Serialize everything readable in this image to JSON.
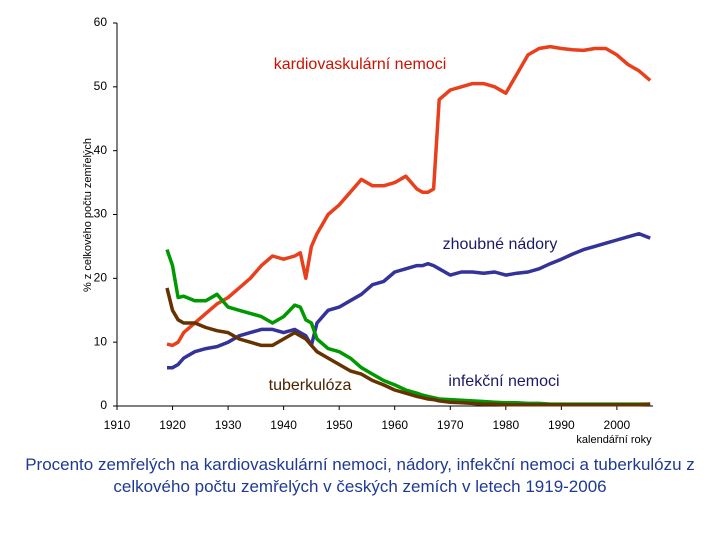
{
  "chart_data": {
    "type": "line",
    "title": "Procento zemřelých na kardiovaskulární nemoci, nádory, infekční nemoci a tuberkulózu z celkového počtu zemřelých v českých zemích v letech 1919-2006",
    "x_label": "kalendářní roky",
    "y_label": "% z celkového počtu zemřelých",
    "x": [
      1919,
      1920,
      1921,
      1922,
      1924,
      1926,
      1928,
      1930,
      1932,
      1934,
      1936,
      1938,
      1940,
      1942,
      1943,
      1944,
      1945,
      1946,
      1948,
      1950,
      1952,
      1954,
      1956,
      1958,
      1960,
      1962,
      1964,
      1965,
      1966,
      1967,
      1968,
      1970,
      1972,
      1974,
      1976,
      1978,
      1980,
      1982,
      1984,
      1986,
      1988,
      1990,
      1992,
      1994,
      1996,
      1998,
      2000,
      2002,
      2004,
      2006
    ],
    "series": [
      {
        "name": "kardiovaskulární nemoci",
        "color": "#e8401c",
        "values": [
          9.7,
          9.5,
          10,
          11.5,
          13,
          14.5,
          16,
          17,
          18.5,
          20,
          22,
          23.5,
          23,
          23.5,
          24,
          20,
          25,
          27,
          30,
          31.5,
          33.5,
          35.5,
          34.5,
          34.5,
          35,
          36,
          34,
          33.5,
          33.5,
          34,
          48,
          49.5,
          50,
          50.5,
          50.5,
          50,
          49,
          52,
          55,
          56,
          56.3,
          56,
          55.8,
          55.7,
          56,
          56,
          55,
          53.5,
          52.5,
          51
        ]
      },
      {
        "name": "zhoubné nádory",
        "color": "#333399",
        "values": [
          6,
          6,
          6.5,
          7.5,
          8.5,
          9,
          9.3,
          10,
          11,
          11.5,
          12,
          12,
          11.5,
          12,
          11.5,
          11,
          9.5,
          13,
          15,
          15.5,
          16.5,
          17.5,
          19,
          19.5,
          21,
          21.5,
          22,
          22,
          22.3,
          22,
          21.5,
          20.5,
          21,
          21,
          20.8,
          21,
          20.5,
          20.8,
          21,
          21.5,
          22.3,
          23,
          23.8,
          24.5,
          25,
          25.5,
          26,
          26.5,
          27,
          26.3
        ]
      },
      {
        "name": "infekční nemoci",
        "color": "#009900",
        "values": [
          24.5,
          22,
          17,
          17.2,
          16.5,
          16.5,
          17.5,
          15.5,
          15,
          14.5,
          14,
          13,
          14,
          15.8,
          15.5,
          13.5,
          13,
          10.5,
          9,
          8.5,
          7.5,
          6,
          5,
          4,
          3.3,
          2.5,
          2,
          1.7,
          1.5,
          1.3,
          1.1,
          1,
          0.9,
          0.8,
          0.7,
          0.6,
          0.5,
          0.5,
          0.4,
          0.4,
          0.3,
          0.3,
          0.3,
          0.3,
          0.3,
          0.3,
          0.3,
          0.3,
          0.3,
          0.3
        ]
      },
      {
        "name": "tuberkulóza",
        "color": "#663300",
        "values": [
          18.5,
          15,
          13.5,
          13,
          13,
          12.3,
          11.8,
          11.5,
          10.5,
          10,
          9.5,
          9.5,
          10.5,
          11.5,
          11,
          10.5,
          9.5,
          8.5,
          7.5,
          6.5,
          5.5,
          5,
          4,
          3.3,
          2.5,
          2,
          1.5,
          1.3,
          1.1,
          1,
          0.8,
          0.6,
          0.5,
          0.4,
          0.3,
          0.3,
          0.2,
          0.2,
          0.2,
          0.2,
          0.2,
          0.2,
          0.2,
          0.2,
          0.2,
          0.2,
          0.2,
          0.2,
          0.2,
          0.3
        ]
      }
    ],
    "xlim": [
      1910,
      2006.5
    ],
    "xticks": [
      1910,
      1920,
      1930,
      1940,
      1950,
      1960,
      1970,
      1980,
      1990,
      2000
    ],
    "ylim": [
      0,
      60
    ],
    "yticks": [
      0,
      10,
      20,
      30,
      40,
      50,
      60
    ],
    "grid": false
  }
}
